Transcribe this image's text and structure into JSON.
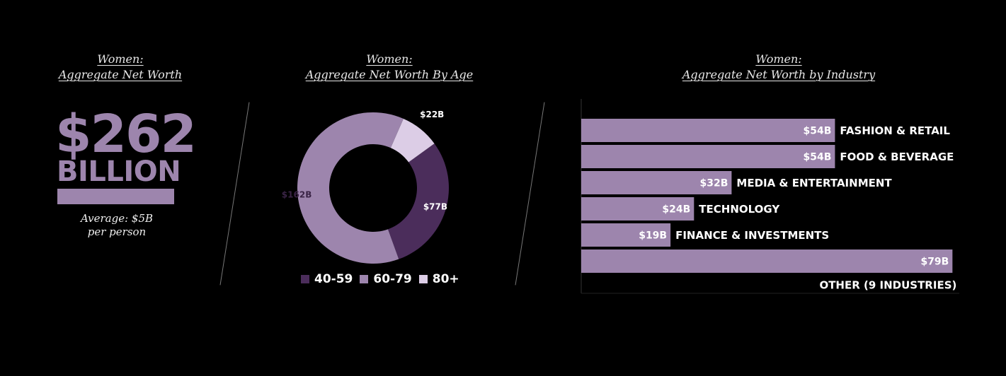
{
  "panel_total": {
    "title_line1": "Women:",
    "title_line2": "Aggregate Net Worth",
    "big_value": "$262",
    "big_unit": "BILLION",
    "avg_line1": "Average: $5B",
    "avg_line2": "per person",
    "accent_color": "#9d85ad"
  },
  "panel_age": {
    "title_line1": "Women:",
    "title_line2": "Aggregate Net Worth By Age"
  },
  "panel_industry": {
    "title_line1": "Women:",
    "title_line2": "Aggregate Net Worth by Industry"
  },
  "chart_data": [
    {
      "type": "pie",
      "donut": true,
      "unit": "$B",
      "slices": [
        {
          "name": "40-59",
          "value": 77,
          "label": "$77B",
          "color": "#4b2d5b"
        },
        {
          "name": "60-79",
          "value": 162,
          "label": "$162B",
          "color": "#9d85ad"
        },
        {
          "name": "80+",
          "value": 22,
          "label": "$22B",
          "color": "#dccde6"
        }
      ],
      "legend": [
        "40-59",
        "60-79",
        "80+"
      ],
      "legend_placement": "bottom"
    },
    {
      "type": "bar",
      "orientation": "horizontal",
      "categories": [
        "FASHION & RETAIL",
        "FOOD & BEVERAGE",
        "MEDIA & ENTERTAINMENT",
        "TECHNOLOGY",
        "FINANCE & INVESTMENTS",
        "OTHER (9 INDUSTRIES)"
      ],
      "values": [
        54,
        54,
        32,
        24,
        19,
        79
      ],
      "value_labels": [
        "$54B",
        "$54B",
        "$32B",
        "$24B",
        "$19B",
        "$79B"
      ],
      "xlim": [
        0,
        80
      ],
      "bar_color": "#9d85ad",
      "grid": false
    }
  ]
}
